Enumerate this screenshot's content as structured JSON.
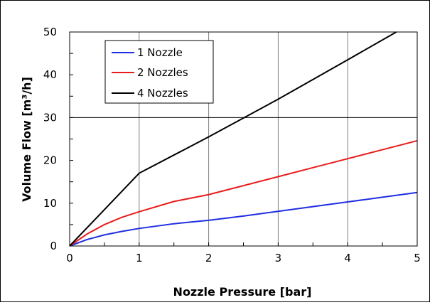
{
  "chart_data": {
    "type": "line",
    "title": "",
    "xlabel": "Nozzle Pressure [bar]",
    "ylabel": "Volume Flow [m³/h]",
    "xlim": [
      0,
      5
    ],
    "ylim": [
      0,
      50
    ],
    "x_ticks": [
      "0",
      "1",
      "2",
      "3",
      "4",
      "5"
    ],
    "y_ticks": [
      "0",
      "10",
      "20",
      "30",
      "40",
      "50"
    ],
    "grid": "vertical lines at each x tick; one horizontal line at y = 30",
    "legend_position": "top-left",
    "series": [
      {
        "name": "1 Nozzle",
        "color": "#1f2ee0",
        "x": [
          0,
          0.25,
          0.5,
          0.75,
          1,
          1.5,
          2,
          2.5,
          3,
          3.5,
          4,
          4.5,
          5
        ],
        "y": [
          0,
          1.5,
          2.6,
          3.4,
          4.1,
          5.2,
          6.0,
          7.0,
          8.1,
          9.2,
          10.3,
          11.4,
          12.5
        ]
      },
      {
        "name": "2 Nozzles",
        "color": "#e81c1c",
        "x": [
          0,
          0.25,
          0.5,
          0.75,
          1,
          1.5,
          2,
          2.5,
          3,
          3.5,
          4,
          4.5,
          5
        ],
        "y": [
          0,
          2.8,
          5.0,
          6.7,
          8.0,
          10.4,
          12.0,
          14.1,
          16.2,
          18.3,
          20.4,
          22.5,
          24.6
        ]
      },
      {
        "name": "4 Nozzles",
        "color": "#000000",
        "x": [
          0,
          1,
          2,
          3,
          4,
          4.7
        ],
        "y": [
          0,
          17.0,
          25.5,
          34.3,
          43.5,
          50.0
        ]
      }
    ]
  }
}
